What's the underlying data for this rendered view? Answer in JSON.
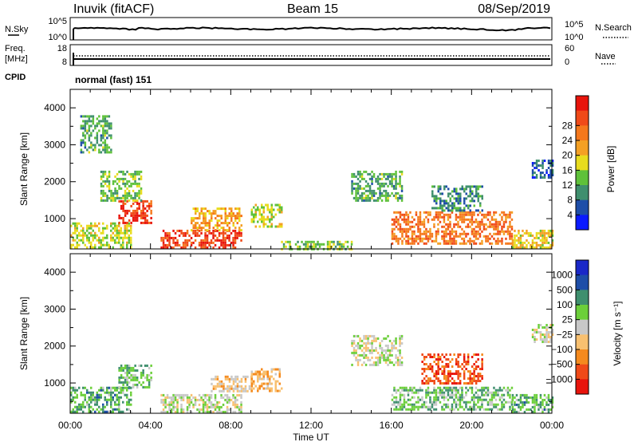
{
  "header": {
    "station": "Inuvik (fitACF)",
    "beam": "Beam 15",
    "date": "08/Sep/2019"
  },
  "sky_panel": {
    "left_label": "N.Sky",
    "left_ticks": [
      "10^5",
      "10^0"
    ],
    "right_ticks": [
      "10^5",
      "10^0"
    ],
    "right_label": "N.Search"
  },
  "freq_panel": {
    "left_label_1": "Freq.",
    "left_label_2": "[MHz]",
    "left_ticks": [
      "18",
      "8"
    ],
    "right_ticks": [
      "60",
      "0"
    ],
    "right_label": "Nave"
  },
  "cpid": {
    "label": "CPID",
    "value": "normal (fast) 151"
  },
  "colors": {
    "power_scale": [
      "#0a1aff",
      "#1e4ea8",
      "#3f8f6e",
      "#5fc13a",
      "#e8dc1e",
      "#f4a024",
      "#f5781c",
      "#f04a18",
      "#e8140c"
    ],
    "velocity_scale": [
      "#e8140c",
      "#f04a18",
      "#f58a1e",
      "#f8c070",
      "#c8c8c8",
      "#6ccf3a",
      "#3f8f6e",
      "#1e4ea8",
      "#1a28c8"
    ]
  },
  "chart_data": [
    {
      "type": "heatmap",
      "title": "",
      "xlabel": "",
      "ylabel": "Slant Range [km]",
      "x_ticks": [
        "00:00",
        "04:00",
        "08:00",
        "12:00",
        "16:00",
        "20:00",
        "00:00"
      ],
      "y_ticks": [
        1000,
        2000,
        3000,
        4000
      ],
      "xlim_hours": [
        0,
        24
      ],
      "ylim_km": [
        180,
        4500
      ],
      "colorbar": {
        "label": "Power [dB]",
        "tick_labels": [
          "4",
          "8",
          "12",
          "16",
          "20",
          "24",
          "28"
        ],
        "range": [
          0,
          30
        ]
      },
      "regions": [
        {
          "t0": 0.0,
          "t1": 3.0,
          "r0": 200,
          "r1": 900,
          "value": 14
        },
        {
          "t0": 2.4,
          "t1": 4.0,
          "r0": 900,
          "r1": 1500,
          "value": 26
        },
        {
          "t0": 1.5,
          "t1": 3.5,
          "r0": 1500,
          "r1": 2300,
          "value": 12
        },
        {
          "t0": 0.5,
          "t1": 2.0,
          "r0": 2800,
          "r1": 3800,
          "value": 10
        },
        {
          "t0": 4.5,
          "t1": 8.5,
          "r0": 200,
          "r1": 700,
          "value": 26
        },
        {
          "t0": 6.0,
          "t1": 8.5,
          "r0": 700,
          "r1": 1300,
          "value": 18
        },
        {
          "t0": 9.0,
          "t1": 10.5,
          "r0": 800,
          "r1": 1400,
          "value": 14
        },
        {
          "t0": 10.5,
          "t1": 14.0,
          "r0": 200,
          "r1": 400,
          "value": 12
        },
        {
          "t0": 14.0,
          "t1": 16.5,
          "r0": 1500,
          "r1": 2300,
          "value": 10
        },
        {
          "t0": 16.0,
          "t1": 22.0,
          "r0": 300,
          "r1": 1200,
          "value": 22
        },
        {
          "t0": 18.0,
          "t1": 20.5,
          "r0": 1200,
          "r1": 1900,
          "value": 8
        },
        {
          "t0": 22.0,
          "t1": 24.0,
          "r0": 200,
          "r1": 700,
          "value": 16
        },
        {
          "t0": 23.0,
          "t1": 24.0,
          "r0": 2100,
          "r1": 2600,
          "value": 6
        }
      ]
    },
    {
      "type": "heatmap",
      "title": "",
      "xlabel": "Time UT",
      "ylabel": "Slant Range [km]",
      "x_ticks": [
        "00:00",
        "04:00",
        "08:00",
        "12:00",
        "16:00",
        "20:00",
        "00:00"
      ],
      "y_ticks": [
        1000,
        2000,
        3000,
        4000
      ],
      "xlim_hours": [
        0,
        24
      ],
      "ylim_km": [
        180,
        4500
      ],
      "colorbar": {
        "label": "Velocity [m s⁻¹]",
        "tick_labels": [
          "1000",
          "500",
          "100",
          "25",
          "−25",
          "−100",
          "−500",
          "−1000"
        ],
        "range": [
          -1200,
          1200
        ]
      },
      "regions": [
        {
          "t0": 0.0,
          "t1": 3.0,
          "r0": 200,
          "r1": 900,
          "value": -400
        },
        {
          "t0": 2.4,
          "t1": 4.0,
          "r0": 900,
          "r1": 1500,
          "value": -300
        },
        {
          "t0": 4.5,
          "t1": 8.5,
          "r0": 200,
          "r1": 700,
          "value": 0
        },
        {
          "t0": 7.0,
          "t1": 9.0,
          "r0": 800,
          "r1": 1200,
          "value": 200
        },
        {
          "t0": 9.0,
          "t1": 10.5,
          "r0": 800,
          "r1": 1400,
          "value": 300
        },
        {
          "t0": 14.0,
          "t1": 16.5,
          "r0": 1500,
          "r1": 2300,
          "value": 0
        },
        {
          "t0": 16.0,
          "t1": 22.0,
          "r0": 300,
          "r1": 900,
          "value": -300
        },
        {
          "t0": 17.5,
          "t1": 20.5,
          "r0": 1000,
          "r1": 1800,
          "value": 800
        },
        {
          "t0": 22.0,
          "t1": 24.0,
          "r0": 200,
          "r1": 700,
          "value": -400
        },
        {
          "t0": 23.0,
          "t1": 24.0,
          "r0": 2100,
          "r1": 2600,
          "value": 0
        }
      ]
    }
  ]
}
